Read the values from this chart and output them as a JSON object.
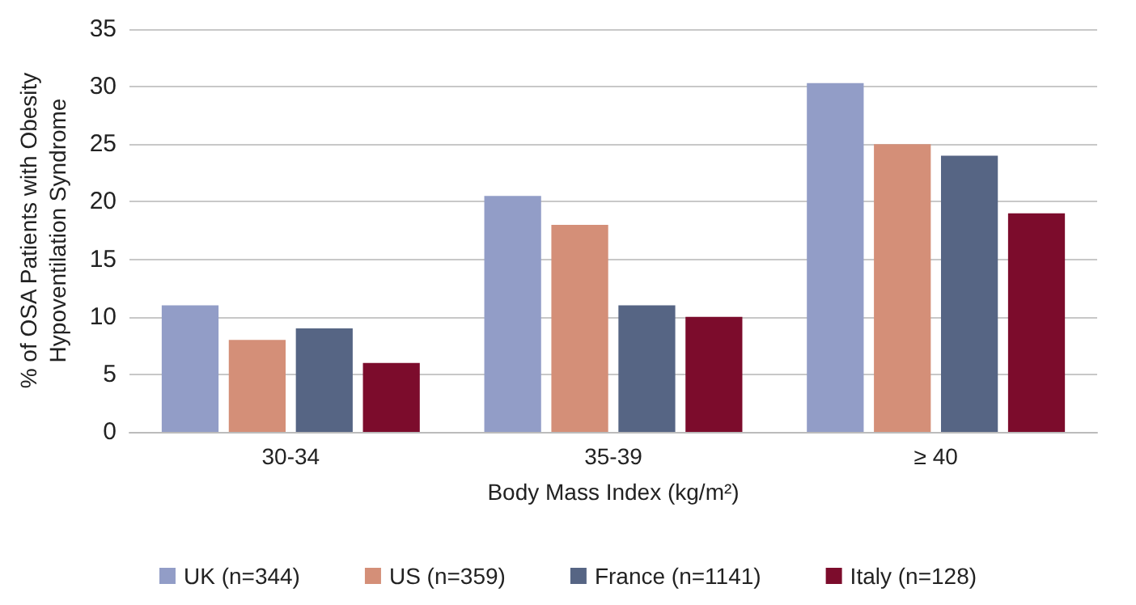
{
  "chart_data": {
    "type": "bar",
    "xlabel": "Body Mass Index (kg/m²)",
    "ylabel": "% of OSA Patients with Obesity\nHypoventilation Syndrome",
    "categories": [
      "30-34",
      "35-39",
      "≥ 40"
    ],
    "series": [
      {
        "name": "UK (n=344)",
        "color": "#929dc7",
        "values": [
          11,
          20.5,
          30.3
        ]
      },
      {
        "name": "US (n=359)",
        "color": "#d48f78",
        "values": [
          8,
          18,
          25
        ]
      },
      {
        "name": "France (n=1141)",
        "color": "#566584",
        "values": [
          9,
          11,
          24
        ]
      },
      {
        "name": "Italy (n=128)",
        "color": "#7c0c2c",
        "values": [
          6,
          10,
          19
        ]
      }
    ],
    "ylim": [
      0,
      35
    ],
    "yticks": [
      0,
      5,
      10,
      15,
      20,
      25,
      30,
      35
    ],
    "grid": "y",
    "legend": "bottom"
  }
}
